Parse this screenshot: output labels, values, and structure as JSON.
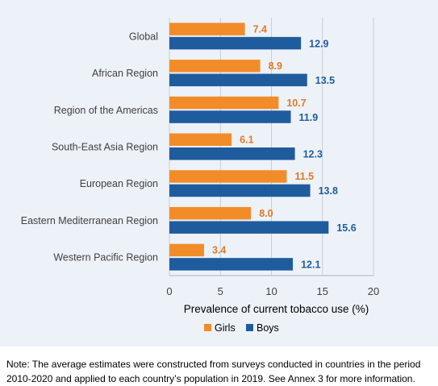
{
  "colors": {
    "girls": "#f28c28",
    "boys": "#1f5c9e",
    "girls_label": "#e07a24",
    "boys_label": "#1f5c9e",
    "panel_background": "#edf2f8",
    "grid": "#c8ced6",
    "axis_text": "#404040"
  },
  "chart_data": {
    "type": "bar",
    "orientation": "horizontal",
    "categories": [
      "Global",
      "African Region",
      "Region of the Americas",
      "South-East Asia Region",
      "European Region",
      "Eastern Mediterranean Region",
      "Western Pacific Region"
    ],
    "series": [
      {
        "name": "Girls",
        "values": [
          7.4,
          8.9,
          10.7,
          6.1,
          11.5,
          8.0,
          3.4
        ]
      },
      {
        "name": "Boys",
        "values": [
          12.9,
          13.5,
          11.9,
          12.3,
          13.8,
          15.6,
          12.1
        ]
      }
    ],
    "data_labels": {
      "Girls": [
        "7.4",
        "8.9",
        "10.7",
        "6.1",
        "11.5",
        "8.0",
        "3.4"
      ],
      "Boys": [
        "12.9",
        "13.5",
        "11.9",
        "12.3",
        "13.8",
        "15.6",
        "12.1"
      ]
    },
    "title": "",
    "xlabel": "Prevalence of current tobacco use (%)",
    "ylabel": "",
    "xlim": [
      0,
      20
    ],
    "xticks": [
      "0",
      "5",
      "10",
      "15",
      "20"
    ],
    "grid": true,
    "legend": {
      "position": "bottom",
      "entries": [
        "Girls",
        "Boys"
      ]
    }
  },
  "note": "Note: The average estimates were constructed from surveys conducted in countries in the period 2010-2020 and applied to each country’s population in 2019. See Annex 3 for more information."
}
